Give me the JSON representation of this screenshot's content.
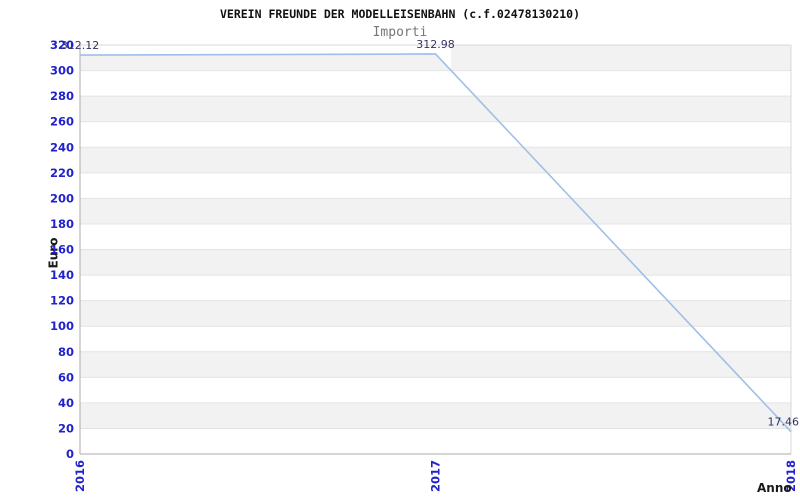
{
  "chart_data": {
    "type": "line",
    "title": "VEREIN FREUNDE DER MODELLEISENBAHN (c.f.02478130210)",
    "subtitle": "Importi",
    "xlabel": "Anno",
    "ylabel": "Euro",
    "categories": [
      "2016",
      "2017",
      "2018"
    ],
    "values": [
      312.12,
      312.98,
      17.46
    ],
    "point_labels": [
      "312.12",
      "312.98",
      "17.46"
    ],
    "ylim": [
      0,
      320
    ],
    "ytick_step": 20,
    "yticks": [
      0,
      20,
      40,
      60,
      80,
      100,
      120,
      140,
      160,
      180,
      200,
      220,
      240,
      260,
      280,
      300,
      320
    ],
    "grid": "alternating-horizontal-bands",
    "legend_position": "none",
    "colors": {
      "line": "#9fbfe8",
      "tick_label": "#2222cc",
      "point_label": "#333366",
      "band_gray": "#f2f2f2",
      "band_white": "#ffffff",
      "grid_line": "#e4e4e4",
      "outer_border": "#d8d8d8",
      "axis_line": "#ababab",
      "title": "#111111",
      "subtitle": "#777777"
    }
  }
}
